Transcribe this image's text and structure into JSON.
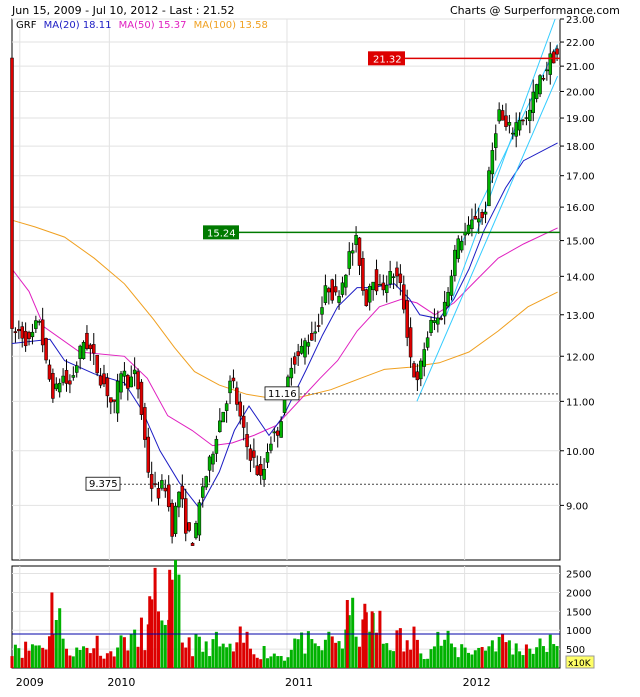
{
  "header": {
    "left": "Jun 15, 2009 - Jul 10, 2012 - Last : 21.52",
    "right": "Charts @ Surperformance.com"
  },
  "legend": {
    "ticker": "GRF",
    "ma20": "MA(20) 18.11",
    "ma50": "MA(50) 15.37",
    "ma100": "MA(100) 13.58"
  },
  "colors": {
    "up": "#00b200",
    "down": "#dd0000",
    "ma20": "#1c1cc4",
    "ma50": "#e020c0",
    "ma100": "#f0a020",
    "channel": "#33ccff",
    "resistance_red": "#dd0000",
    "resistance_green": "#007a00",
    "volume_avg": "#0000aa"
  },
  "chart_data": [
    {
      "type": "candlestick",
      "title": "",
      "ylim": [
        8.1,
        23.0
      ],
      "y_scale": "log",
      "y_ticks": [
        "9.00",
        "10.00",
        "11.00",
        "12.00",
        "13.00",
        "14.00",
        "15.00",
        "16.00",
        "17.00",
        "18.00",
        "19.00",
        "20.00",
        "21.00",
        "22.00",
        "23.00"
      ],
      "x_ticks": [
        "2009",
        "2010",
        "2011",
        "2012"
      ],
      "grid": true,
      "price": [
        [
          "2009-06-15",
          12.5
        ],
        [
          "2009-07-01",
          12.6
        ],
        [
          "2009-07-20",
          12.3
        ],
        [
          "2009-08-10",
          12.9
        ],
        [
          "2009-08-25",
          11.7
        ],
        [
          "2009-09-10",
          11.1
        ],
        [
          "2009-09-25",
          11.6
        ],
        [
          "2009-10-10",
          11.3
        ],
        [
          "2009-10-25",
          11.8
        ],
        [
          "2009-11-10",
          12.4
        ],
        [
          "2009-11-25",
          12.1
        ],
        [
          "2009-12-10",
          11.6
        ],
        [
          "2009-12-25",
          11.3
        ],
        [
          "2010-01-10",
          10.8
        ],
        [
          "2010-01-25",
          11.7
        ],
        [
          "2010-02-10",
          11.4
        ],
        [
          "2010-02-25",
          11.6
        ],
        [
          "2010-03-10",
          10.6
        ],
        [
          "2010-03-25",
          9.4
        ],
        [
          "2010-04-10",
          9.2
        ],
        [
          "2010-04-25",
          9.4
        ],
        [
          "2010-05-10",
          8.6
        ],
        [
          "2010-05-25",
          9.3
        ],
        [
          "2010-06-10",
          8.5
        ],
        [
          "2010-06-25",
          8.4
        ],
        [
          "2010-07-10",
          9.3
        ],
        [
          "2010-07-25",
          9.7
        ],
        [
          "2010-08-10",
          10.4
        ],
        [
          "2010-08-25",
          10.9
        ],
        [
          "2010-09-10",
          11.5
        ],
        [
          "2010-09-25",
          10.7
        ],
        [
          "2010-10-10",
          10.1
        ],
        [
          "2010-10-25",
          9.8
        ],
        [
          "2010-11-10",
          9.4
        ],
        [
          "2010-11-25",
          10.2
        ],
        [
          "2010-12-10",
          10.3
        ],
        [
          "2010-12-25",
          10.9
        ],
        [
          "2011-01-10",
          11.9
        ],
        [
          "2011-01-25",
          12.0
        ],
        [
          "2011-02-10",
          12.4
        ],
        [
          "2011-02-25",
          12.5
        ],
        [
          "2011-03-10",
          13.0
        ],
        [
          "2011-03-25",
          13.8
        ],
        [
          "2011-04-10",
          13.4
        ],
        [
          "2011-04-25",
          13.9
        ],
        [
          "2011-05-10",
          14.6
        ],
        [
          "2011-05-25",
          15.0
        ],
        [
          "2011-06-10",
          13.2
        ],
        [
          "2011-06-25",
          14.1
        ],
        [
          "2011-07-10",
          13.6
        ],
        [
          "2011-07-25",
          13.9
        ],
        [
          "2011-08-10",
          14.1
        ],
        [
          "2011-08-25",
          13.6
        ],
        [
          "2011-09-10",
          12.1
        ],
        [
          "2011-09-25",
          11.3
        ],
        [
          "2011-10-10",
          12.2
        ],
        [
          "2011-10-25",
          12.8
        ],
        [
          "2011-11-10",
          12.9
        ],
        [
          "2011-11-25",
          13.4
        ],
        [
          "2011-12-10",
          14.6
        ],
        [
          "2011-12-25",
          15.1
        ],
        [
          "2012-01-10",
          15.3
        ],
        [
          "2012-01-25",
          15.8
        ],
        [
          "2012-02-10",
          15.6
        ],
        [
          "2012-02-25",
          17.6
        ],
        [
          "2012-03-10",
          19.3
        ],
        [
          "2012-03-25",
          18.6
        ],
        [
          "2012-04-10",
          18.6
        ],
        [
          "2012-04-25",
          19.1
        ],
        [
          "2012-05-10",
          18.9
        ],
        [
          "2012-05-25",
          20.1
        ],
        [
          "2012-06-10",
          20.6
        ],
        [
          "2012-06-25",
          21.3
        ],
        [
          "2012-07-10",
          21.52
        ]
      ],
      "ma20": [
        [
          "2009-06-15",
          12.3
        ],
        [
          "2009-09-01",
          12.4
        ],
        [
          "2009-10-01",
          11.9
        ],
        [
          "2009-12-01",
          11.6
        ],
        [
          "2010-02-01",
          11.4
        ],
        [
          "2010-03-10",
          10.8
        ],
        [
          "2010-04-15",
          10.0
        ],
        [
          "2010-05-25",
          9.4
        ],
        [
          "2010-07-05",
          8.95
        ],
        [
          "2010-08-15",
          9.6
        ],
        [
          "2010-09-15",
          10.4
        ],
        [
          "2010-10-15",
          10.9
        ],
        [
          "2010-11-25",
          10.3
        ],
        [
          "2010-12-25",
          10.7
        ],
        [
          "2011-02-10",
          11.7
        ],
        [
          "2011-03-15",
          12.5
        ],
        [
          "2011-04-15",
          13.2
        ],
        [
          "2011-05-25",
          13.7
        ],
        [
          "2011-06-25",
          13.7
        ],
        [
          "2011-08-10",
          13.8
        ],
        [
          "2011-09-10",
          13.4
        ],
        [
          "2011-10-01",
          13.0
        ],
        [
          "2011-11-10",
          12.9
        ],
        [
          "2011-12-10",
          13.4
        ],
        [
          "2012-01-10",
          14.2
        ],
        [
          "2012-02-10",
          15.3
        ],
        [
          "2012-03-25",
          16.6
        ],
        [
          "2012-05-01",
          17.5
        ],
        [
          "2012-07-10",
          18.11
        ]
      ],
      "ma50": [
        [
          "2009-06-15",
          14.2
        ],
        [
          "2009-07-20",
          13.6
        ],
        [
          "2009-08-20",
          12.7
        ],
        [
          "2009-11-01",
          12.1
        ],
        [
          "2010-02-01",
          12.0
        ],
        [
          "2010-03-20",
          11.5
        ],
        [
          "2010-05-01",
          10.7
        ],
        [
          "2010-06-20",
          10.4
        ],
        [
          "2010-08-01",
          10.1
        ],
        [
          "2010-09-10",
          10.15
        ],
        [
          "2010-10-25",
          10.3
        ],
        [
          "2010-12-10",
          10.5
        ],
        [
          "2011-01-25",
          11.0
        ],
        [
          "2011-03-10",
          11.5
        ],
        [
          "2011-04-15",
          11.9
        ],
        [
          "2011-05-25",
          12.6
        ],
        [
          "2011-07-10",
          13.2
        ],
        [
          "2011-08-25",
          13.4
        ],
        [
          "2011-09-25",
          13.3
        ],
        [
          "2011-11-01",
          13.0
        ],
        [
          "2011-12-10",
          13.3
        ],
        [
          "2012-01-25",
          13.9
        ],
        [
          "2012-03-10",
          14.5
        ],
        [
          "2012-05-01",
          14.9
        ],
        [
          "2012-07-10",
          15.37
        ]
      ],
      "ma100": [
        [
          "2009-06-15",
          15.6
        ],
        [
          "2009-08-01",
          15.4
        ],
        [
          "2009-10-01",
          15.1
        ],
        [
          "2009-12-01",
          14.5
        ],
        [
          "2010-02-01",
          13.8
        ],
        [
          "2010-04-01",
          12.9
        ],
        [
          "2010-05-15",
          12.2
        ],
        [
          "2010-06-25",
          11.65
        ],
        [
          "2010-08-15",
          11.35
        ],
        [
          "2010-10-10",
          11.15
        ],
        [
          "2010-12-10",
          11.05
        ],
        [
          "2011-02-01",
          11.1
        ],
        [
          "2011-04-01",
          11.25
        ],
        [
          "2011-06-01",
          11.5
        ],
        [
          "2011-07-20",
          11.7
        ],
        [
          "2011-09-10",
          11.75
        ],
        [
          "2011-11-10",
          11.85
        ],
        [
          "2012-01-10",
          12.1
        ],
        [
          "2012-03-10",
          12.6
        ],
        [
          "2012-05-10",
          13.2
        ],
        [
          "2012-07-10",
          13.58
        ]
      ],
      "channel": {
        "lower": [
          [
            "2011-09-25",
            11.0
          ],
          [
            "2012-07-10",
            20.6
          ]
        ],
        "upper": [
          [
            "2011-11-25",
            13.0
          ],
          [
            "2012-07-05",
            23.0
          ]
        ],
        "mid": [
          [
            "2011-12-25",
            14.9
          ],
          [
            "2012-07-10",
            21.9
          ]
        ]
      },
      "levels": [
        {
          "label": "21.32",
          "value": 21.32,
          "style": "red-line"
        },
        {
          "label": "15.24",
          "value": 15.24,
          "style": "green-line"
        },
        {
          "label": "11.16",
          "value": 11.16,
          "style": "dotted"
        },
        {
          "label": "9.375",
          "value": 9.375,
          "style": "dotted"
        }
      ]
    },
    {
      "type": "bar",
      "unit_label": "x10K",
      "ylim": [
        0,
        2700
      ],
      "y_ticks": [
        "500",
        "1000",
        "1500",
        "2000",
        "2500"
      ],
      "average": 900,
      "volume": [
        [
          "2009-06-15",
          900
        ],
        [
          "2009-07-05",
          700
        ],
        [
          "2009-07-25",
          850
        ],
        [
          "2009-08-15",
          950
        ],
        [
          "2009-09-05",
          2000
        ],
        [
          "2009-09-25",
          800
        ],
        [
          "2009-10-15",
          600
        ],
        [
          "2009-11-05",
          750
        ],
        [
          "2009-11-25",
          900
        ],
        [
          "2009-12-15",
          500
        ],
        [
          "2010-01-05",
          850
        ],
        [
          "2010-01-25",
          1100
        ],
        [
          "2010-02-15",
          950
        ],
        [
          "2010-03-05",
          1300
        ],
        [
          "2010-03-25",
          1900
        ],
        [
          "2010-04-05",
          2650
        ],
        [
          "2010-04-20",
          1200
        ],
        [
          "2010-05-05",
          2600
        ],
        [
          "2010-05-25",
          1000
        ],
        [
          "2010-06-15",
          850
        ],
        [
          "2010-07-05",
          700
        ],
        [
          "2010-07-25",
          900
        ],
        [
          "2010-08-15",
          750
        ],
        [
          "2010-09-05",
          650
        ],
        [
          "2010-09-25",
          1000
        ],
        [
          "2010-10-15",
          700
        ],
        [
          "2010-11-05",
          600
        ],
        [
          "2010-11-25",
          500
        ],
        [
          "2010-12-15",
          450
        ],
        [
          "2011-01-05",
          1000
        ],
        [
          "2011-01-25",
          900
        ],
        [
          "2011-02-15",
          700
        ],
        [
          "2011-03-05",
          750
        ],
        [
          "2011-03-25",
          1150
        ],
        [
          "2011-04-15",
          950
        ],
        [
          "2011-05-05",
          1800
        ],
        [
          "2011-05-25",
          1200
        ],
        [
          "2011-06-10",
          1700
        ],
        [
          "2011-06-25",
          1500
        ],
        [
          "2011-07-15",
          900
        ],
        [
          "2011-08-05",
          1050
        ],
        [
          "2011-08-25",
          800
        ],
        [
          "2011-09-15",
          1100
        ],
        [
          "2011-10-05",
          650
        ],
        [
          "2011-10-25",
          1000
        ],
        [
          "2011-11-15",
          900
        ],
        [
          "2011-12-05",
          600
        ],
        [
          "2011-12-25",
          750
        ],
        [
          "2012-01-15",
          650
        ],
        [
          "2012-02-05",
          800
        ],
        [
          "2012-02-25",
          1000
        ],
        [
          "2012-03-15",
          950
        ],
        [
          "2012-04-05",
          700
        ],
        [
          "2012-04-25",
          800
        ],
        [
          "2012-05-15",
          750
        ],
        [
          "2012-06-05",
          900
        ],
        [
          "2012-06-25",
          650
        ],
        [
          "2012-07-10",
          500
        ]
      ]
    }
  ]
}
